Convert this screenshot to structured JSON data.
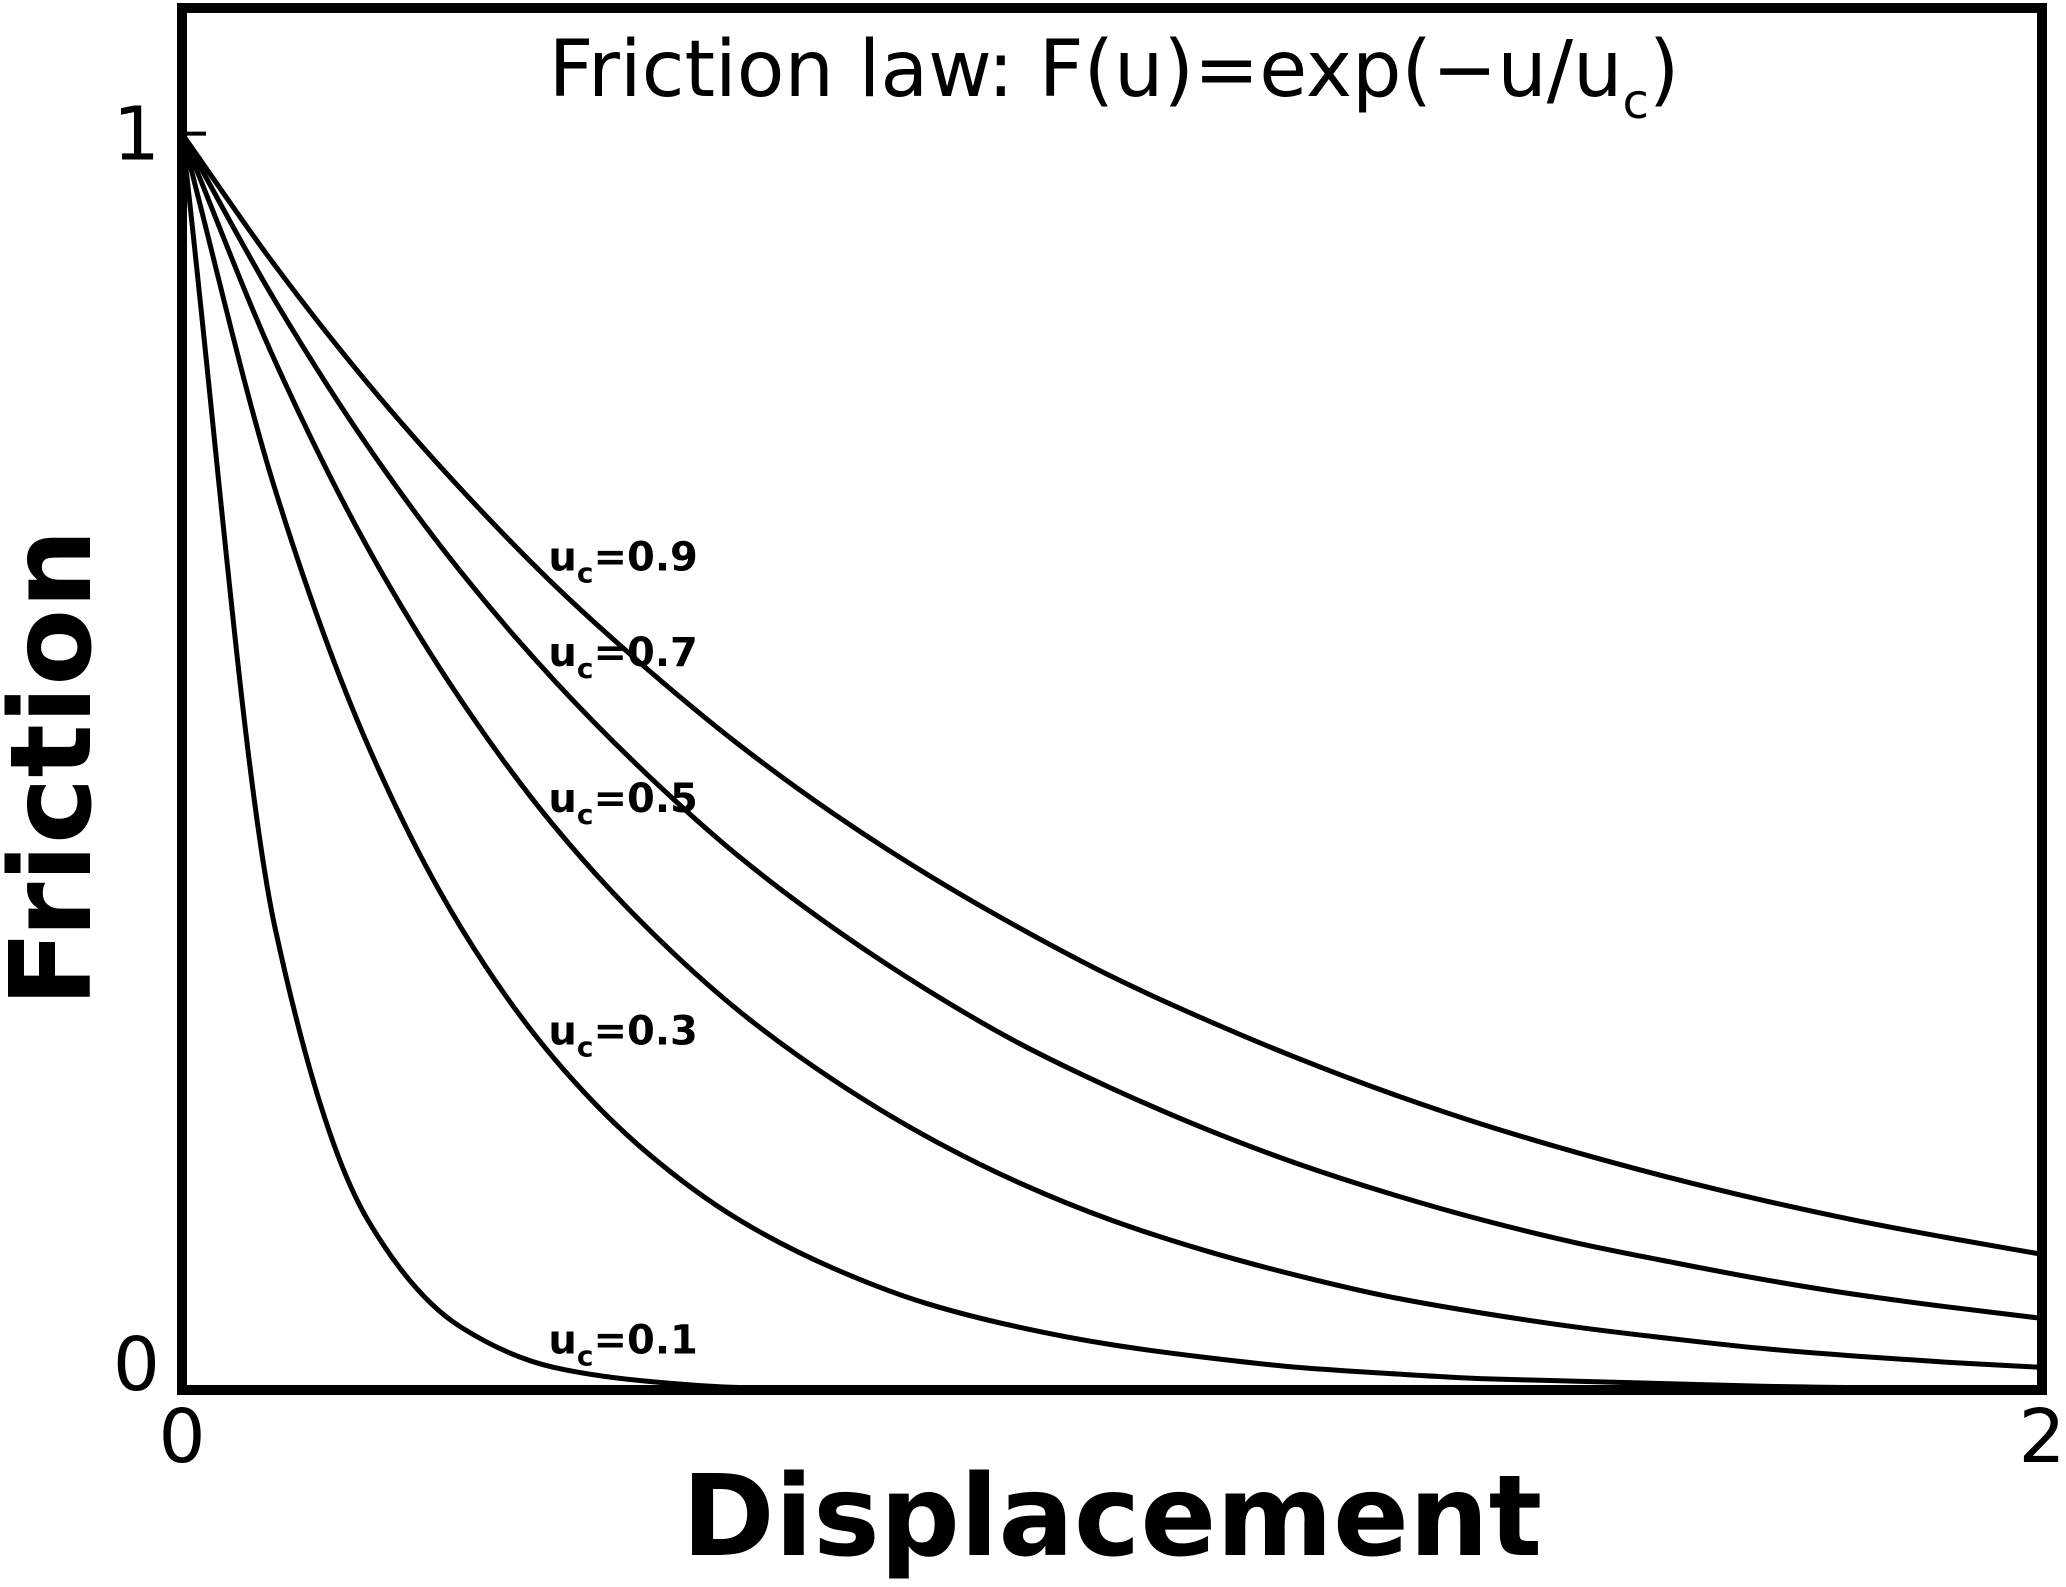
{
  "chart_data": {
    "type": "line",
    "title": [
      "Friction law: F(u)=exp(−u/u",
      "c",
      ")"
    ],
    "xlabel": "Displacement",
    "ylabel": "Friction",
    "x": [
      0,
      0.1,
      0.2,
      0.3,
      0.4,
      0.5,
      0.6,
      0.7,
      0.8,
      0.9,
      1.0,
      1.1,
      1.2,
      1.3,
      1.4,
      1.5,
      1.6,
      1.7,
      1.8,
      1.9,
      2.0
    ],
    "xlim": [
      0,
      2
    ],
    "xticks": [
      0,
      2
    ],
    "ylim": [
      0,
      1.1
    ],
    "yticks": [
      0,
      1
    ],
    "series": [
      {
        "name": [
          "u",
          "c",
          "=0.9"
        ],
        "color": "#000000",
        "values": [
          1,
          0.895,
          0.801,
          0.717,
          0.641,
          0.574,
          0.513,
          0.459,
          0.411,
          0.368,
          0.329,
          0.295,
          0.264,
          0.236,
          0.211,
          0.189,
          0.169,
          0.151,
          0.135,
          0.121,
          0.108
        ]
      },
      {
        "name": [
          "u",
          "c",
          "=0.7"
        ],
        "color": "#000000",
        "values": [
          1,
          0.867,
          0.751,
          0.651,
          0.565,
          0.49,
          0.424,
          0.368,
          0.319,
          0.276,
          0.24,
          0.208,
          0.18,
          0.156,
          0.135,
          0.117,
          0.102,
          0.088,
          0.076,
          0.066,
          0.057
        ]
      },
      {
        "name": [
          "u",
          "c",
          "=0.5"
        ],
        "color": "#000000",
        "values": [
          1,
          0.819,
          0.67,
          0.549,
          0.449,
          0.368,
          0.301,
          0.247,
          0.202,
          0.165,
          0.135,
          0.111,
          0.091,
          0.074,
          0.061,
          0.05,
          0.041,
          0.033,
          0.027,
          0.022,
          0.018
        ]
      },
      {
        "name": [
          "u",
          "c",
          "=0.3"
        ],
        "color": "#000000",
        "values": [
          1,
          0.717,
          0.513,
          0.368,
          0.264,
          0.189,
          0.135,
          0.097,
          0.069,
          0.05,
          0.036,
          0.026,
          0.018,
          0.013,
          0.009,
          0.007,
          0.005,
          0.003,
          0.002,
          0.002,
          0.001
        ]
      },
      {
        "name": [
          "u",
          "c",
          "=0.1"
        ],
        "color": "#000000",
        "values": [
          1,
          0.368,
          0.135,
          0.05,
          0.018,
          0.007,
          0.002,
          0.001,
          0,
          0,
          0,
          0,
          0,
          0,
          0,
          0,
          0,
          0,
          0,
          0,
          0
        ]
      }
    ]
  }
}
